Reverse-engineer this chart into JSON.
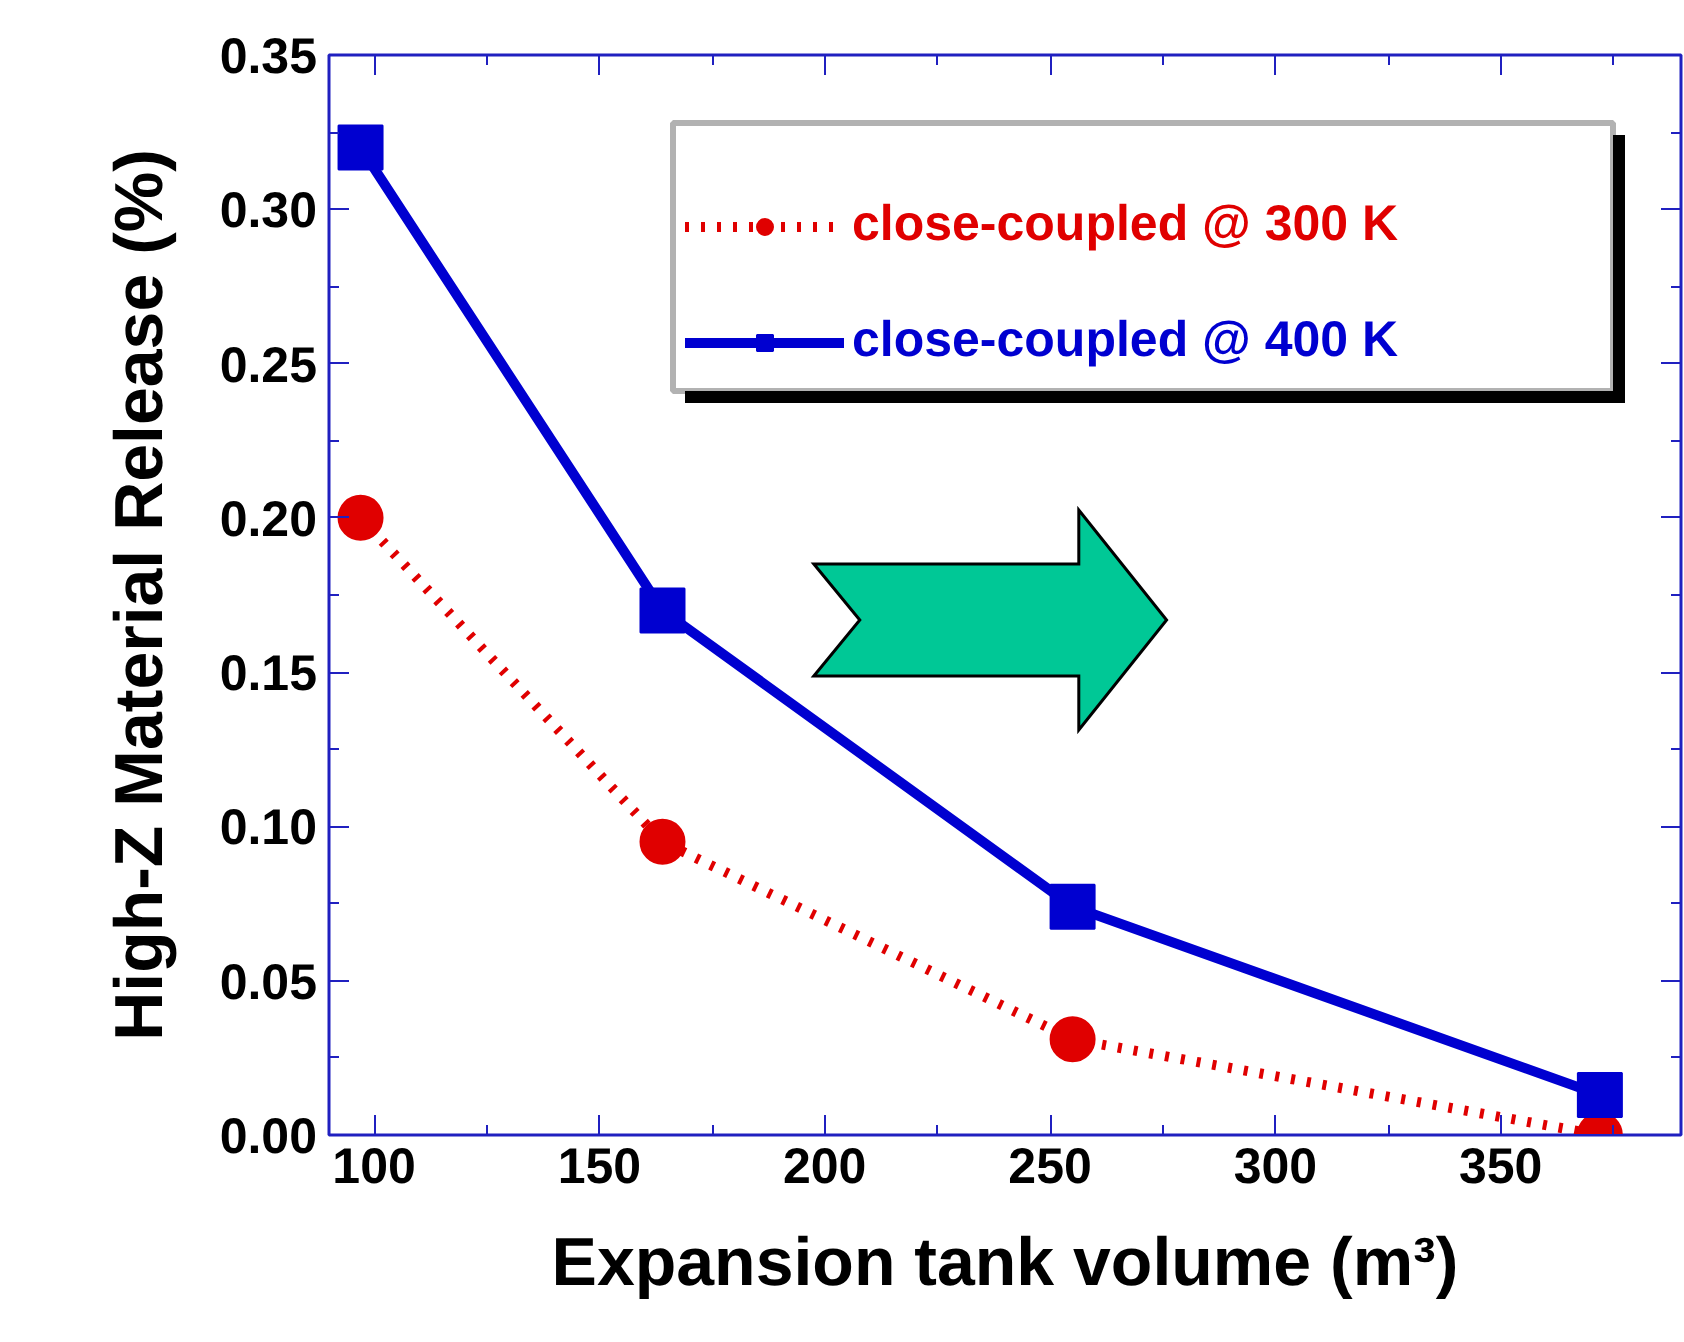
{
  "chart_data": {
    "type": "line",
    "xlabel": "Expansion tank volume (m³)",
    "ylabel": "High-Z Material Release (%)",
    "xlim": [
      90,
      390
    ],
    "xticks": [
      100,
      150,
      200,
      250,
      300,
      350
    ],
    "ylim": [
      0,
      0.35
    ],
    "yticks": [
      {
        "value": 0,
        "label": "0.00"
      },
      {
        "value": 0.05,
        "label": "0.05"
      },
      {
        "value": 0.1,
        "label": "0.10"
      },
      {
        "value": 0.15,
        "label": "0.15"
      },
      {
        "value": 0.2,
        "label": "0.20"
      },
      {
        "value": 0.25,
        "label": "0.25"
      },
      {
        "value": 0.3,
        "label": "0.30"
      },
      {
        "value": 0.35,
        "label": "0.35"
      }
    ],
    "grid": false,
    "legend": "top right",
    "series": [
      {
        "name": "close-coupled @ 300 K",
        "color": "#e00000",
        "marker": "circle",
        "line_style": "dotted",
        "x": [
          97,
          164,
          255,
          372
        ],
        "values": [
          0.2,
          0.095,
          0.031,
          0.0
        ]
      },
      {
        "name": "close-coupled @ 400 K",
        "color": "#0000d0",
        "marker": "square",
        "line_style": "solid",
        "x": [
          97,
          164,
          255,
          372
        ],
        "values": [
          0.32,
          0.17,
          0.074,
          0.013
        ]
      }
    ]
  }
}
